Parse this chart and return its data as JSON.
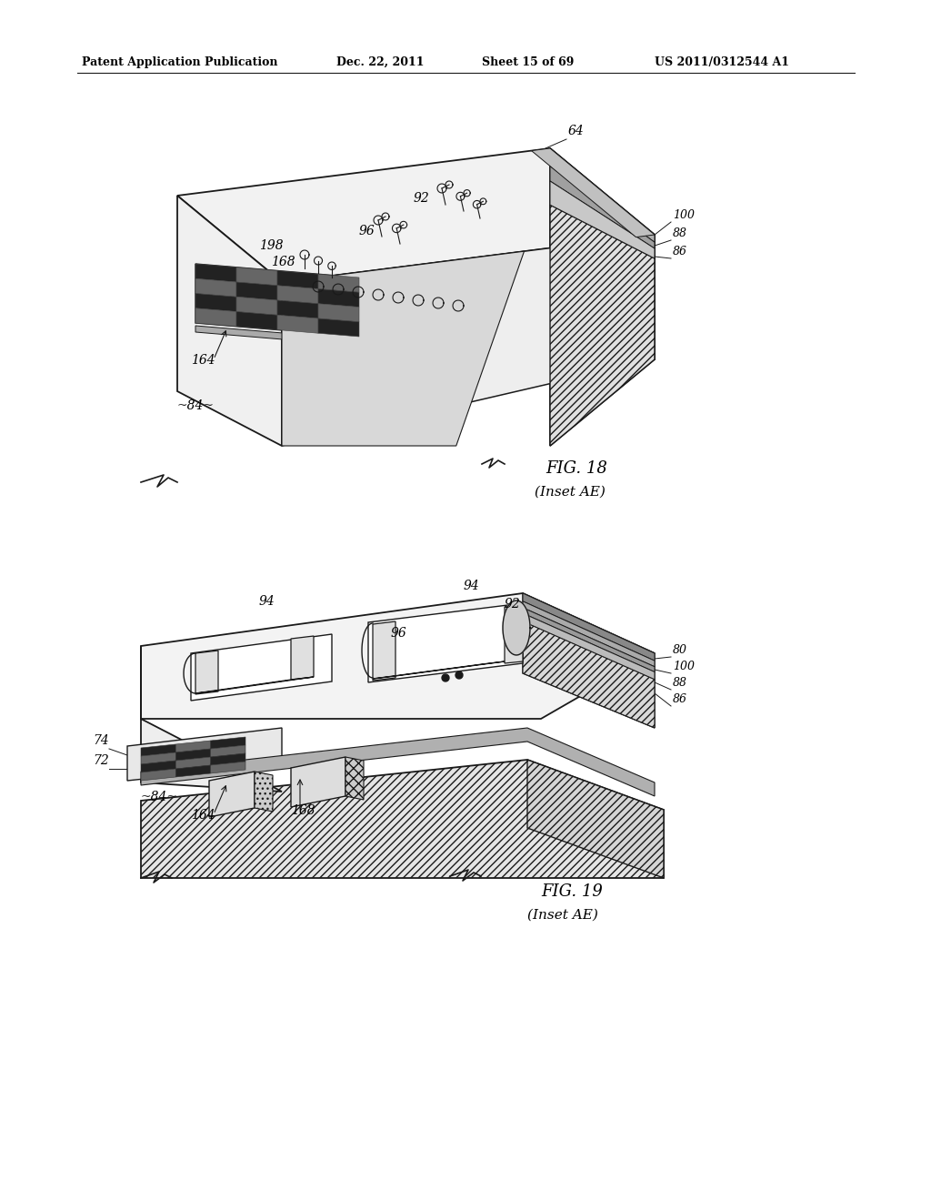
{
  "bg_color": "#ffffff",
  "header_text": "Patent Application Publication",
  "header_date": "Dec. 22, 2011",
  "header_sheet": "Sheet 15 of 69",
  "header_patent": "US 2011/0312544 A1",
  "fig18_label": "FIG. 18",
  "fig18_sub": "(Inset AE)",
  "fig19_label": "FIG. 19",
  "fig19_sub": "(Inset AE)",
  "line_color": "#1a1a1a",
  "hatch_color": "#333333",
  "face_light": "#f5f5f5",
  "face_mid": "#e0e0e0",
  "face_dark": "#cccccc",
  "grid_dark": "#222222",
  "grid_mid": "#666666"
}
